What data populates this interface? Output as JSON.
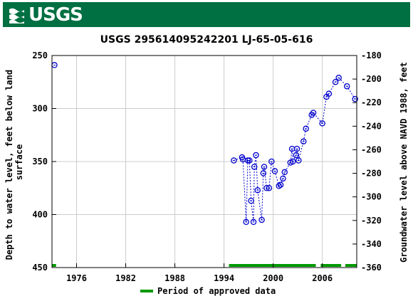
{
  "header": {
    "logo_text": "USGS"
  },
  "chart_data": {
    "type": "scatter",
    "title": "USGS 295614095242201 LJ-65-05-616",
    "xlabel": "",
    "ylabel": "Depth to water level, feet below land surface",
    "ylabel_right": "Groundwater level above NAVD 1988, feet",
    "xlim": [
      1973.0,
      2010.2
    ],
    "ylim": [
      450,
      250
    ],
    "y_right_lim": [
      -360,
      -180
    ],
    "x_ticks": [
      1976,
      1982,
      1988,
      1994,
      2000,
      2006
    ],
    "x_tick_labels": [
      "1976",
      "1982",
      "1988",
      "1994",
      "2000",
      "2006"
    ],
    "y_ticks": [
      250,
      300,
      350,
      400,
      450
    ],
    "y_tick_labels": [
      "250",
      "300",
      "350",
      "400",
      "450"
    ],
    "y_right_ticks": [
      -180,
      -200,
      -220,
      -240,
      -260,
      -280,
      -300,
      -320,
      -340,
      -360
    ],
    "y_right_tick_labels": [
      "-180",
      "-200",
      "-220",
      "-240",
      "-260",
      "-280",
      "-300",
      "-320",
      "-340",
      "-360"
    ],
    "grid": true,
    "series": [
      {
        "name": "",
        "color": "#0000cc",
        "points": [
          [
            1973.3,
            259
          ],
          [
            1995.2,
            349
          ],
          [
            1996.2,
            346
          ],
          [
            1996.3,
            348
          ],
          [
            1996.7,
            407
          ],
          [
            1996.9,
            349
          ],
          [
            1997.1,
            349
          ],
          [
            1997.3,
            387
          ],
          [
            1997.6,
            407
          ],
          [
            1997.7,
            355
          ],
          [
            1997.9,
            344
          ],
          [
            1998.1,
            377
          ],
          [
            1998.6,
            405
          ],
          [
            1998.8,
            361
          ],
          [
            1998.9,
            355
          ],
          [
            1999.2,
            375
          ],
          [
            1999.5,
            375
          ],
          [
            1999.8,
            350
          ],
          [
            2000.2,
            359
          ],
          [
            2000.7,
            373
          ],
          [
            2000.9,
            372
          ],
          [
            2001.2,
            366
          ],
          [
            2001.4,
            360
          ],
          [
            2002.1,
            351
          ],
          [
            2002.3,
            338
          ],
          [
            2002.4,
            350
          ],
          [
            2002.8,
            344
          ],
          [
            2002.9,
            338
          ],
          [
            2003.1,
            349
          ],
          [
            2003.7,
            331
          ],
          [
            2004.0,
            319
          ],
          [
            2004.7,
            306
          ],
          [
            2004.9,
            304
          ],
          [
            2006.0,
            314
          ],
          [
            2006.5,
            289
          ],
          [
            2006.8,
            286
          ],
          [
            2007.6,
            275
          ],
          [
            2008.0,
            271
          ],
          [
            2009.0,
            279
          ],
          [
            2010.0,
            291
          ]
        ]
      }
    ],
    "approved_periods": [
      [
        1973.0,
        1973.5
      ],
      [
        1994.6,
        2005.2
      ],
      [
        2005.8,
        2008.3
      ],
      [
        2008.8,
        2010.2
      ]
    ],
    "approved_color": "#009900",
    "legend": {
      "label": "Period of approved data",
      "placement": "bottom-center"
    }
  }
}
